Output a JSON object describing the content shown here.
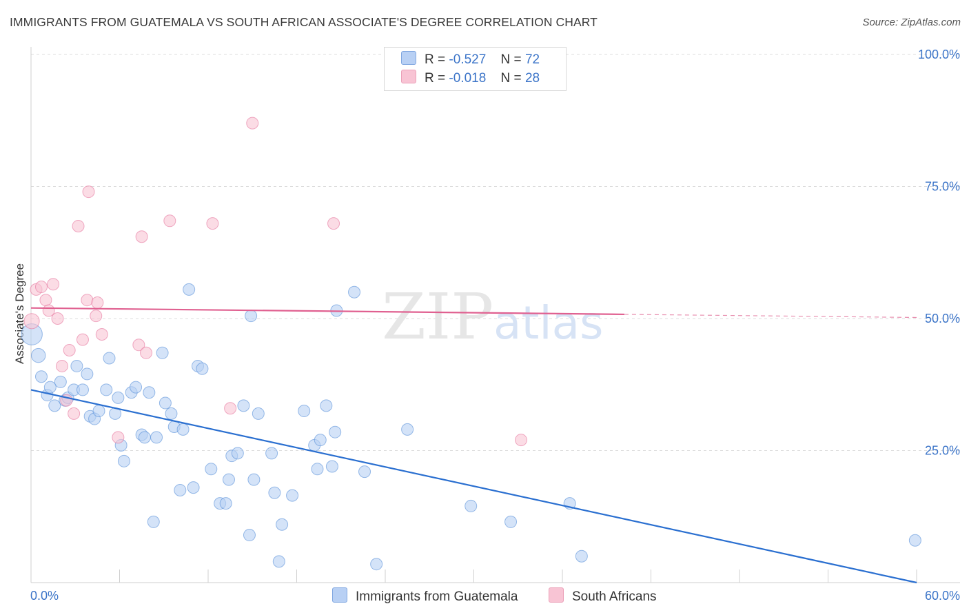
{
  "header": {
    "title": "IMMIGRANTS FROM GUATEMALA VS SOUTH AFRICAN ASSOCIATE'S DEGREE CORRELATION CHART",
    "source": "Source: ZipAtlas.com"
  },
  "watermark": {
    "zip": "ZIP",
    "atlas": "atlas"
  },
  "legend_top": {
    "rows": [
      {
        "r_label": "R =",
        "r_value": "-0.527",
        "n_label": "N =",
        "n_value": "72",
        "color": "#b8d0f4"
      },
      {
        "r_label": "R =",
        "r_value": "-0.018",
        "n_label": "N =",
        "n_value": "28",
        "color": "#f8c4d4"
      }
    ]
  },
  "legend_bottom": {
    "items": [
      {
        "label": "Immigrants from Guatemala",
        "color": "#b8d0f4"
      },
      {
        "label": "South Africans",
        "color": "#f8c4d4"
      }
    ]
  },
  "chart_data": {
    "type": "scatter",
    "title": "IMMIGRANTS FROM GUATEMALA VS SOUTH AFRICAN ASSOCIATE'S DEGREE CORRELATION CHART",
    "xlabel": "",
    "ylabel": "Associate's Degree",
    "xlim": [
      0,
      60
    ],
    "ylim": [
      0,
      100
    ],
    "x_tick_labels": [
      "0.0%",
      "60.0%"
    ],
    "y_tick_values": [
      25,
      50,
      75,
      100
    ],
    "y_tick_labels": [
      "25.0%",
      "50.0%",
      "75.0%",
      "100.0%"
    ],
    "grid": true,
    "legend_position": "top-center and bottom",
    "series": [
      {
        "name": "Immigrants from Guatemala",
        "color": "#4a86d6",
        "fill": "#b8d0f4",
        "trend": {
          "x0": 0,
          "y0": 36.5,
          "x1": 60,
          "y1": 0
        },
        "points": [
          [
            0.05,
            47,
            1.8
          ],
          [
            0.5,
            43,
            1.2
          ],
          [
            0.7,
            39,
            1
          ],
          [
            1.1,
            35.5,
            1
          ],
          [
            1.3,
            37,
            1
          ],
          [
            1.6,
            33.5,
            1
          ],
          [
            2.0,
            38,
            1
          ],
          [
            2.3,
            34.5,
            1
          ],
          [
            2.5,
            35,
            1
          ],
          [
            2.9,
            36.5,
            1
          ],
          [
            3.1,
            41,
            1
          ],
          [
            3.5,
            36.5,
            1
          ],
          [
            3.8,
            39.5,
            1
          ],
          [
            4.0,
            31.5,
            1
          ],
          [
            4.3,
            31,
            1
          ],
          [
            4.6,
            32.5,
            1
          ],
          [
            5.1,
            36.5,
            1
          ],
          [
            5.3,
            42.5,
            1
          ],
          [
            5.7,
            32,
            1
          ],
          [
            5.9,
            35,
            1
          ],
          [
            6.1,
            26,
            1
          ],
          [
            6.3,
            23,
            1
          ],
          [
            6.8,
            36,
            1
          ],
          [
            7.1,
            37,
            1
          ],
          [
            7.5,
            28,
            1
          ],
          [
            7.7,
            27.5,
            1
          ],
          [
            8.0,
            36,
            1
          ],
          [
            8.5,
            27.5,
            1
          ],
          [
            8.9,
            43.5,
            1
          ],
          [
            9.1,
            34,
            1
          ],
          [
            8.3,
            11.5,
            1
          ],
          [
            9.5,
            32,
            1
          ],
          [
            9.7,
            29.5,
            1
          ],
          [
            10.1,
            17.5,
            1
          ],
          [
            10.3,
            29,
            1
          ],
          [
            10.7,
            55.5,
            1
          ],
          [
            11.0,
            18,
            1
          ],
          [
            11.3,
            41,
            1
          ],
          [
            11.6,
            40.5,
            1
          ],
          [
            12.2,
            21.5,
            1
          ],
          [
            12.8,
            15,
            1
          ],
          [
            13.2,
            15,
            1
          ],
          [
            13.4,
            19.5,
            1
          ],
          [
            13.6,
            24,
            1
          ],
          [
            14.0,
            24.5,
            1
          ],
          [
            14.4,
            33.5,
            1
          ],
          [
            14.8,
            9,
            1
          ],
          [
            14.9,
            50.5,
            1
          ],
          [
            15.1,
            19.5,
            1
          ],
          [
            15.4,
            32,
            1
          ],
          [
            16.3,
            24.5,
            1
          ],
          [
            16.5,
            17,
            1
          ],
          [
            16.8,
            4,
            1
          ],
          [
            17.0,
            11,
            1
          ],
          [
            17.7,
            16.5,
            1
          ],
          [
            18.5,
            32.5,
            1
          ],
          [
            19.2,
            26,
            1
          ],
          [
            19.4,
            21.5,
            1
          ],
          [
            19.6,
            27,
            1
          ],
          [
            20.0,
            33.5,
            1
          ],
          [
            20.4,
            22,
            1
          ],
          [
            20.6,
            28.5,
            1
          ],
          [
            20.7,
            51.5,
            1
          ],
          [
            21.9,
            55,
            1
          ],
          [
            22.6,
            21,
            1
          ],
          [
            23.4,
            3.5,
            1
          ],
          [
            25.5,
            29,
            1
          ],
          [
            29.8,
            14.5,
            1
          ],
          [
            32.5,
            11.5,
            1
          ],
          [
            36.5,
            15,
            1
          ],
          [
            37.3,
            5,
            1
          ],
          [
            59.9,
            8,
            1
          ]
        ]
      },
      {
        "name": "South Africans",
        "color": "#e46a95",
        "fill": "#f8c4d4",
        "trend": {
          "x0": 0,
          "y0": 52,
          "x1": 60,
          "y1": 50.2,
          "solid_until_x": 40.2
        },
        "points": [
          [
            0.05,
            49.5,
            1.3
          ],
          [
            0.35,
            55.5,
            1
          ],
          [
            0.7,
            56,
            1
          ],
          [
            1.0,
            53.5,
            1
          ],
          [
            1.2,
            51.5,
            1
          ],
          [
            1.5,
            56.5,
            1
          ],
          [
            1.8,
            50,
            1
          ],
          [
            2.1,
            41,
            1
          ],
          [
            2.4,
            34.5,
            1
          ],
          [
            2.6,
            44,
            1
          ],
          [
            2.9,
            32,
            1
          ],
          [
            3.2,
            67.5,
            1
          ],
          [
            3.5,
            46,
            1
          ],
          [
            3.8,
            53.5,
            1
          ],
          [
            3.9,
            74,
            1
          ],
          [
            4.4,
            50.5,
            1
          ],
          [
            4.5,
            53,
            1
          ],
          [
            4.8,
            47,
            1
          ],
          [
            5.9,
            27.5,
            1
          ],
          [
            7.3,
            45,
            1
          ],
          [
            7.5,
            65.5,
            1
          ],
          [
            7.8,
            43.5,
            1
          ],
          [
            9.4,
            68.5,
            1
          ],
          [
            12.3,
            68,
            1
          ],
          [
            13.5,
            33,
            1
          ],
          [
            15.0,
            87,
            1
          ],
          [
            20.5,
            68,
            1
          ],
          [
            33.2,
            27,
            1
          ]
        ]
      }
    ]
  }
}
